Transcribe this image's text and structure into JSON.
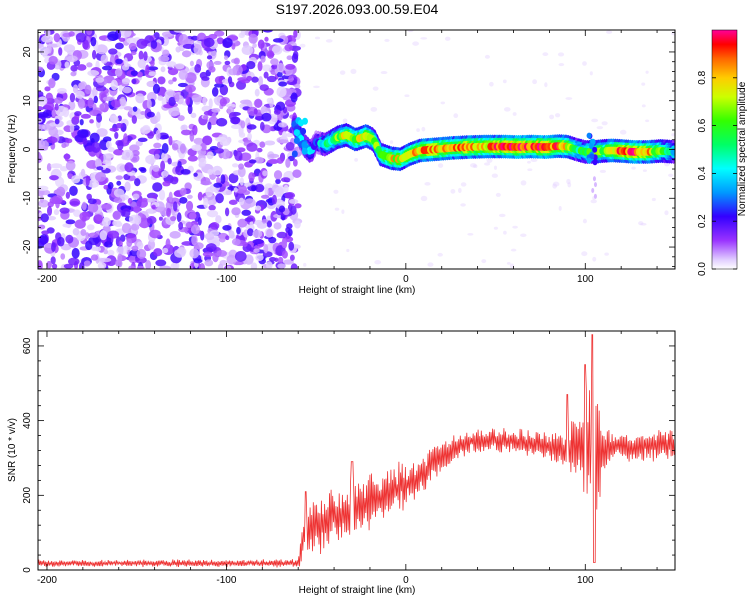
{
  "title": "S197.2026.093.00.59.E04",
  "colorbar": {
    "label": "Normalized spectral amplitude",
    "ticks": [
      "0.0",
      "0.2",
      "0.4",
      "0.6",
      "0.8"
    ],
    "tick_values": [
      0.0,
      0.2,
      0.4,
      0.6,
      0.8
    ],
    "range": [
      0,
      1
    ]
  },
  "chart_data": [
    {
      "type": "heatmap",
      "title": "S197.2026.093.00.59.E04",
      "xlabel": "Height of straight line (km)",
      "ylabel": "Frequency (Hz)",
      "xlim": [
        -205,
        150
      ],
      "ylim": [
        -24.5,
        24.5
      ],
      "x_ticks": [
        -200,
        -100,
        0,
        100
      ],
      "x_tick_labels": [
        "-200",
        "-100",
        "0",
        "100"
      ],
      "y_ticks": [
        -20,
        -10,
        0,
        10,
        20
      ],
      "y_tick_labels": [
        "-20",
        "-10",
        "0",
        "10",
        "20"
      ],
      "noise_region_x": [
        -205,
        -60
      ],
      "ridge": [
        {
          "x": -60,
          "y": 3.5,
          "amp": 0.3
        },
        {
          "x": -57,
          "y": 1.0,
          "amp": 0.35
        },
        {
          "x": -53,
          "y": -0.5,
          "amp": 0.3
        },
        {
          "x": -50,
          "y": 1.5,
          "amp": 0.3
        },
        {
          "x": -45,
          "y": 1.0,
          "amp": 0.45
        },
        {
          "x": -38,
          "y": 2.5,
          "amp": 0.6
        },
        {
          "x": -33,
          "y": 3.0,
          "amp": 0.7
        },
        {
          "x": -28,
          "y": 2.0,
          "amp": 0.65
        },
        {
          "x": -22,
          "y": 2.8,
          "amp": 0.75
        },
        {
          "x": -18,
          "y": 2.0,
          "amp": 0.6
        },
        {
          "x": -14,
          "y": -1.0,
          "amp": 0.6
        },
        {
          "x": -8,
          "y": -1.8,
          "amp": 0.75
        },
        {
          "x": -3,
          "y": -2.0,
          "amp": 0.7
        },
        {
          "x": 2,
          "y": -1.0,
          "amp": 0.75
        },
        {
          "x": 8,
          "y": -0.2,
          "amp": 0.8
        },
        {
          "x": 15,
          "y": 0.0,
          "amp": 0.85
        },
        {
          "x": 25,
          "y": 0.3,
          "amp": 0.8
        },
        {
          "x": 35,
          "y": 0.5,
          "amp": 0.85
        },
        {
          "x": 45,
          "y": 0.6,
          "amp": 0.8
        },
        {
          "x": 55,
          "y": 0.6,
          "amp": 0.9
        },
        {
          "x": 62,
          "y": 0.5,
          "amp": 0.95
        },
        {
          "x": 70,
          "y": 0.6,
          "amp": 0.9
        },
        {
          "x": 78,
          "y": 0.5,
          "amp": 0.95
        },
        {
          "x": 85,
          "y": 0.7,
          "amp": 0.85
        },
        {
          "x": 90,
          "y": 0.6,
          "amp": 0.75
        },
        {
          "x": 95,
          "y": 0.0,
          "amp": 0.5
        },
        {
          "x": 100,
          "y": -0.5,
          "amp": 0.55
        },
        {
          "x": 105,
          "y": -0.5,
          "amp": 0.6
        },
        {
          "x": 110,
          "y": -0.3,
          "amp": 0.65
        },
        {
          "x": 115,
          "y": -0.2,
          "amp": 0.8
        },
        {
          "x": 120,
          "y": -0.3,
          "amp": 0.85
        },
        {
          "x": 127,
          "y": -0.5,
          "amp": 0.9
        },
        {
          "x": 135,
          "y": -0.5,
          "amp": 0.8
        },
        {
          "x": 142,
          "y": -0.3,
          "amp": 0.6
        },
        {
          "x": 150,
          "y": -0.5,
          "amp": 0.4
        }
      ]
    },
    {
      "type": "line",
      "xlabel": "Height of straight line (km)",
      "ylabel": "SNR (10 * v/v)",
      "xlim": [
        -205,
        150
      ],
      "ylim": [
        0,
        640
      ],
      "x_ticks": [
        -200,
        -100,
        0,
        100
      ],
      "x_tick_labels": [
        "-200",
        "-100",
        "0",
        "100"
      ],
      "y_ticks": [
        0,
        200,
        400,
        600
      ],
      "y_tick_labels": [
        "0",
        "200",
        "400",
        "600"
      ],
      "color": "#ee3333",
      "series": [
        {
          "name": "SNR",
          "envelope_x": [
            -205,
            -60,
            -56,
            -50,
            -40,
            -30,
            -20,
            -10,
            0,
            10,
            20,
            30,
            40,
            50,
            60,
            70,
            80,
            90,
            95,
            100,
            103,
            106,
            110,
            120,
            130,
            140,
            150
          ],
          "envelope_mean": [
            18,
            18,
            100,
            110,
            140,
            160,
            185,
            205,
            230,
            255,
            300,
            335,
            345,
            350,
            345,
            340,
            330,
            325,
            330,
            330,
            280,
            260,
            320,
            330,
            330,
            335,
            335
          ],
          "envelope_amp": [
            8,
            10,
            70,
            70,
            70,
            70,
            70,
            65,
            60,
            55,
            40,
            30,
            30,
            30,
            30,
            30,
            35,
            50,
            90,
            130,
            230,
            220,
            60,
            35,
            35,
            40,
            40
          ],
          "peaks": [
            {
              "x": -56,
              "y": 210
            },
            {
              "x": -30,
              "y": 290
            },
            {
              "x": 90,
              "y": 470
            },
            {
              "x": 100,
              "y": 550
            },
            {
              "x": 104,
              "y": 630
            },
            {
              "x": 105,
              "y": 20
            }
          ]
        }
      ]
    }
  ]
}
